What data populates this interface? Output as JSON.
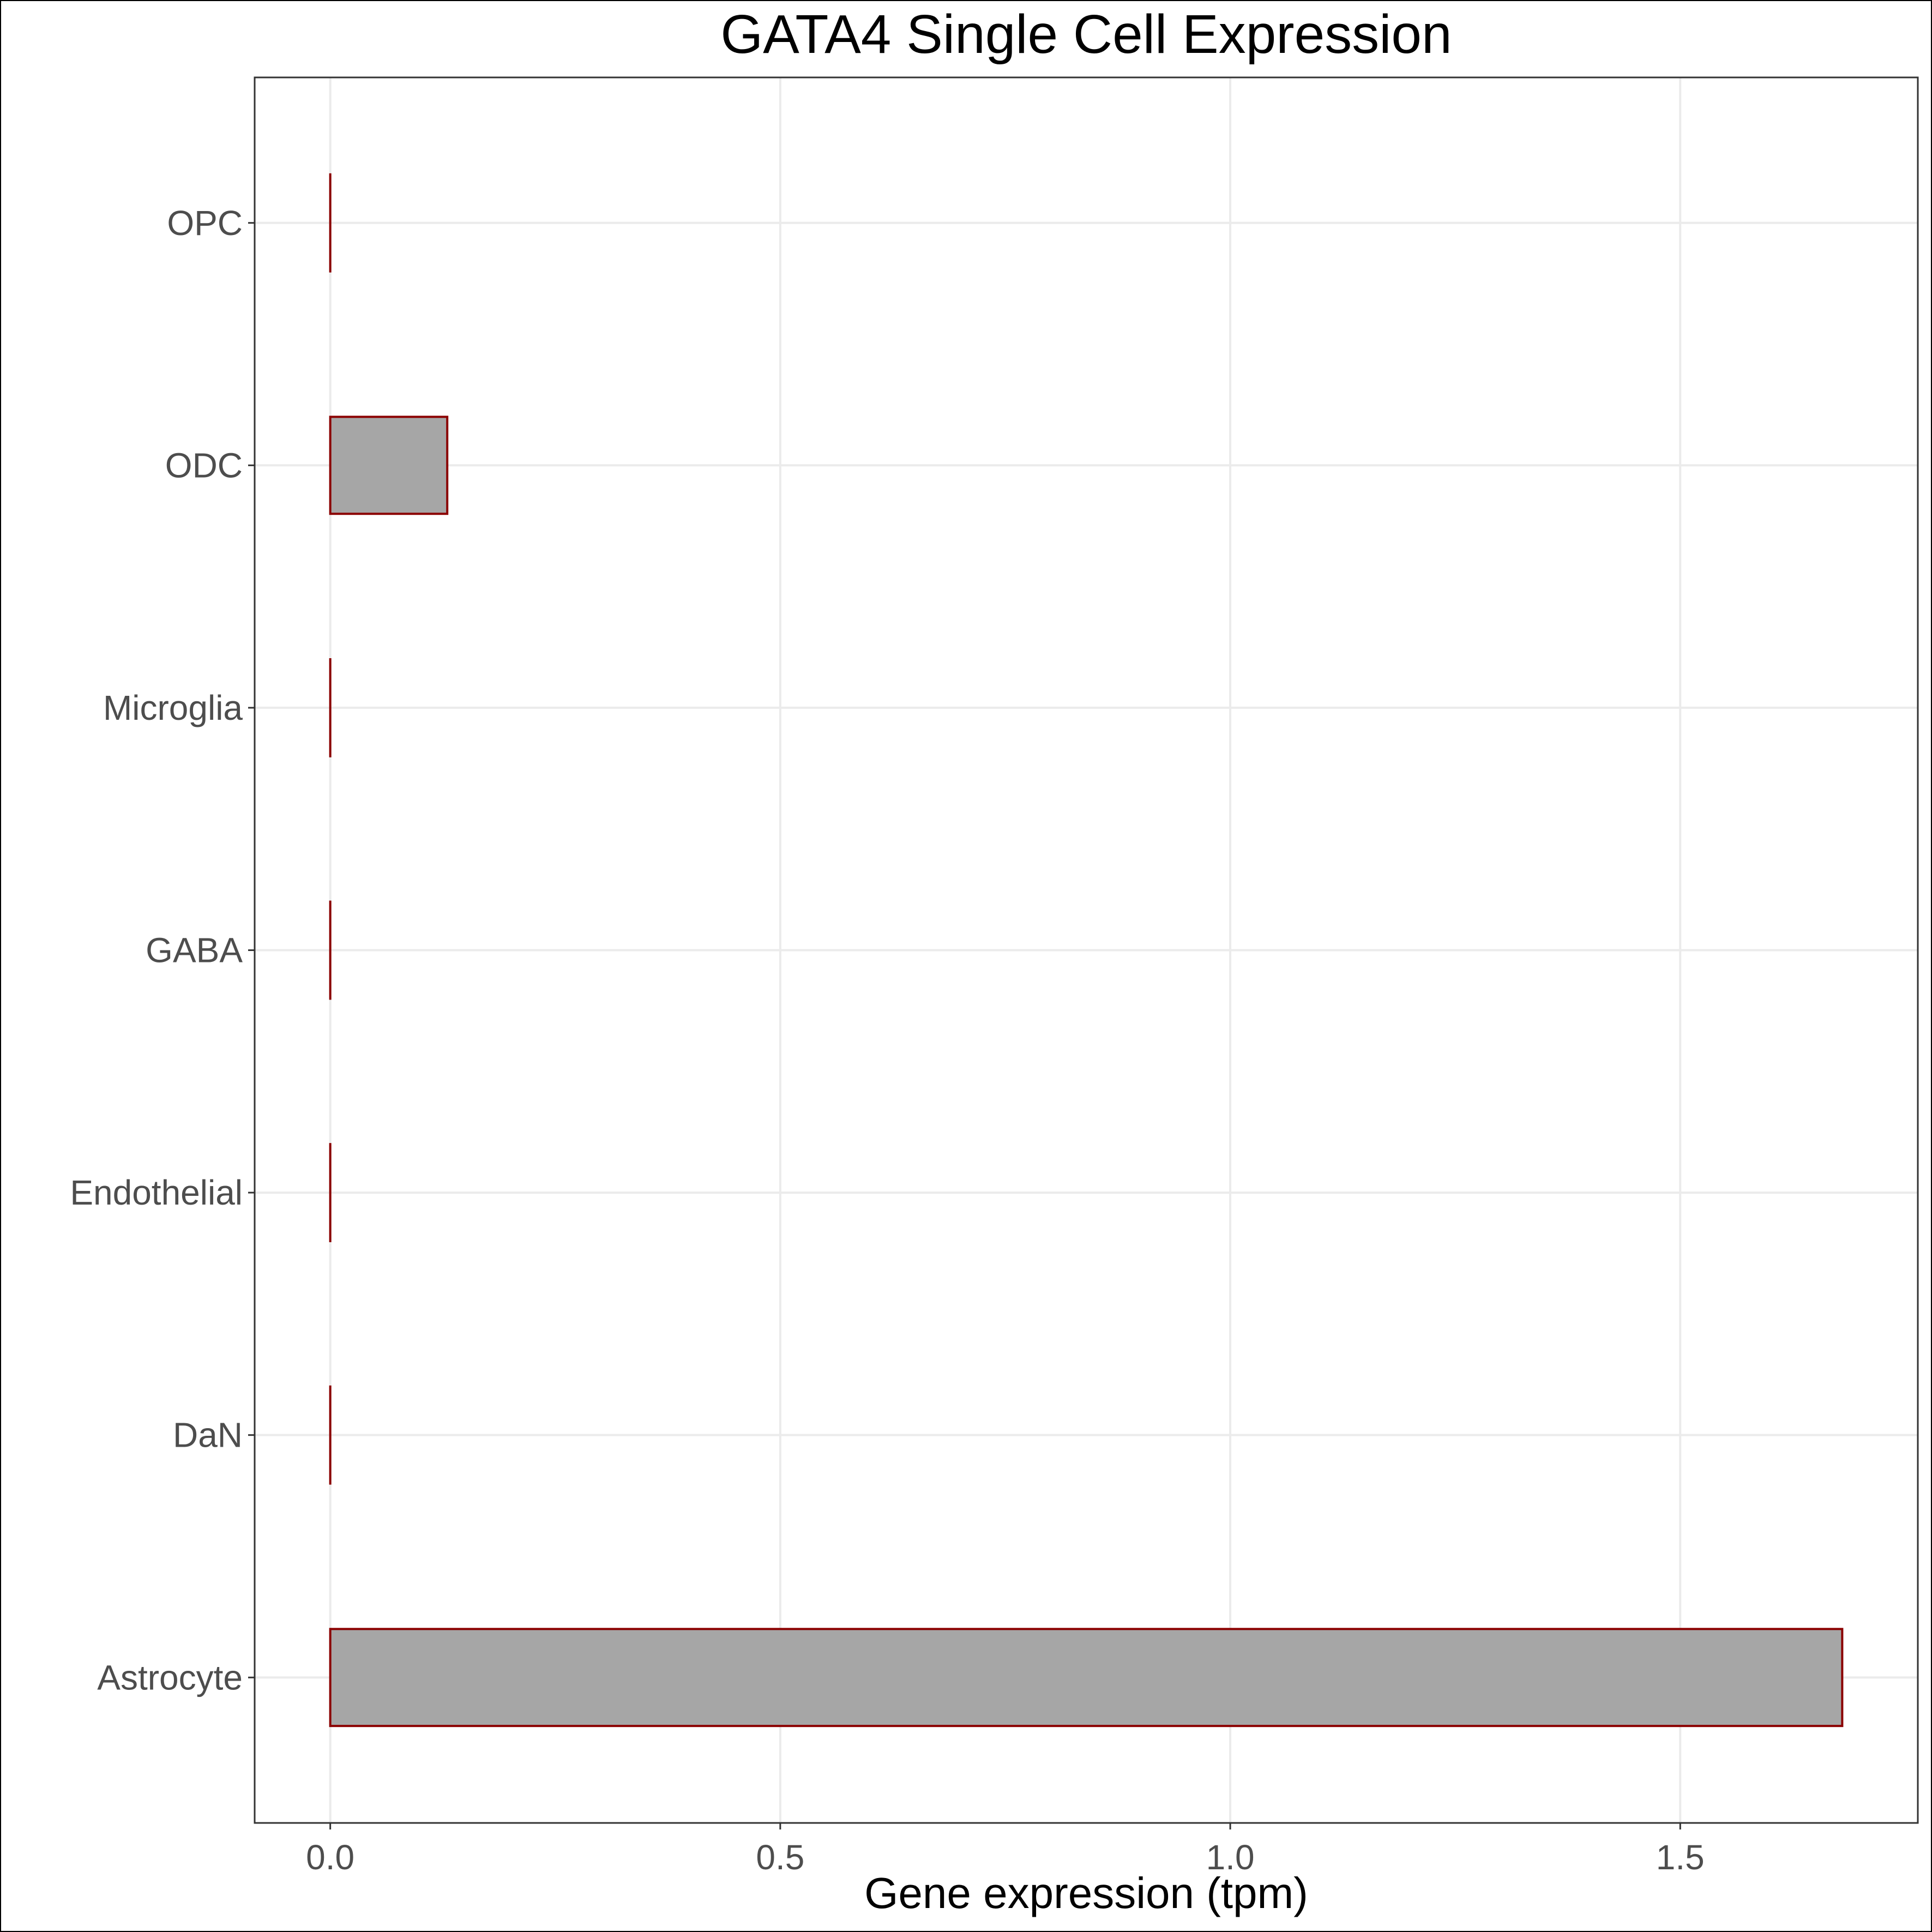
{
  "chart_data": {
    "type": "bar",
    "orientation": "horizontal",
    "title": "GATA4 Single Cell Expression",
    "xlabel": "Gene expression (tpm)",
    "ylabel": "",
    "categories": [
      "Astrocyte",
      "DaN",
      "Endothelial",
      "GABA",
      "Microglia",
      "ODC",
      "OPC"
    ],
    "values": [
      1.68,
      0,
      0,
      0,
      0,
      0.13,
      0
    ],
    "xlim": [
      -0.084,
      1.764
    ],
    "xticks": [
      0.0,
      0.5,
      1.0,
      1.5
    ],
    "xtick_labels": [
      "0.0",
      "0.5",
      "1.0",
      "1.5"
    ],
    "grid": true,
    "bar_fill": "#a6a6a6",
    "bar_outline": "#8b0000",
    "background": "#ffffff",
    "grid_color": "#ebebeb"
  }
}
